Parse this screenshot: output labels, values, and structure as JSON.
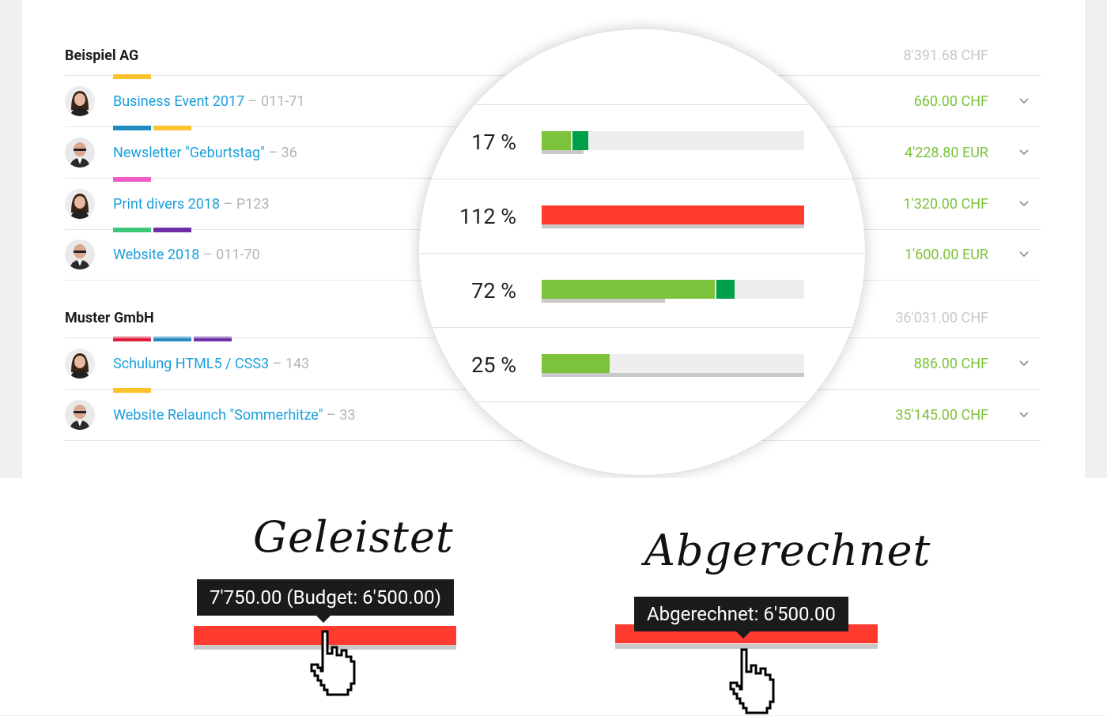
{
  "colors": {
    "link": "#1a9fdc",
    "amount": "#7cc23a",
    "muted": "#b5b5b5",
    "bar_green": "#7cc23a",
    "bar_dark_green": "#00a04a",
    "bar_red": "#ff3b30",
    "tag_yellow": "#fcc22d",
    "tag_blue": "#1f8bc0",
    "tag_pink": "#f25bc6",
    "tag_green": "#3cc678",
    "tag_purple": "#6c2fa8",
    "tag_red": "#e31b3b"
  },
  "groups": [
    {
      "name": "Beispiel AG",
      "total": "8'391.68 CHF",
      "projects": [
        {
          "name": "Business Event 2017",
          "sep": " – ",
          "code": "011-71",
          "amount": "660.00 CHF",
          "avatar": "woman-1",
          "tags": [
            "tag_yellow"
          ]
        },
        {
          "name": "Newsletter \"Geburtstag\"",
          "sep": " – ",
          "code": "36",
          "amount": "4'228.80 EUR",
          "avatar": "man-bald",
          "tags": [
            "tag_blue",
            "tag_yellow"
          ]
        },
        {
          "name": "Print divers 2018",
          "sep": " – ",
          "code": "P123",
          "amount": "1'320.00 CHF",
          "avatar": "woman-2",
          "tags": [
            "tag_pink"
          ]
        },
        {
          "name": "Website 2018",
          "sep": " – ",
          "code": "011-70",
          "amount": "1'600.00 EUR",
          "avatar": "man-bald",
          "tags": [
            "tag_green",
            "tag_purple"
          ]
        }
      ]
    },
    {
      "name": "Muster GmbH",
      "total": "36'031.00 CHF",
      "projects": [
        {
          "name": "Schulung HTML5 / CSS3",
          "sep": " – ",
          "code": "143",
          "amount": "886.00 CHF",
          "avatar": "woman-1",
          "tags": [
            "tag_red",
            "tag_blue",
            "tag_purple"
          ]
        },
        {
          "name": "Website Relaunch \"Sommerhitze\"",
          "sep": " – ",
          "code": "33",
          "amount": "35'145.00 CHF",
          "avatar": "man-bald",
          "tags": [
            "tag_yellow"
          ]
        }
      ]
    }
  ],
  "magnifier": {
    "rows": [
      {
        "percent": "17 %",
        "light": 0.11,
        "dark": 0.06,
        "underline": 0.16,
        "color": "green"
      },
      {
        "percent": "112 %",
        "light": 1.0,
        "dark": 0,
        "underline": 1.0,
        "color": "red"
      },
      {
        "percent": "72 %",
        "light": 0.66,
        "dark": 0.07,
        "underline": 0.47,
        "color": "green"
      },
      {
        "percent": "25 %",
        "light": 0.26,
        "dark": 0,
        "underline": 1.0,
        "color": "green"
      }
    ]
  },
  "illustration": {
    "left_label": "Geleistet",
    "left_tooltip": "7'750.00 (Budget: 6'500.00)",
    "right_label": "Abgerechnet",
    "right_tooltip": "Abgerechnet: 6'500.00"
  }
}
